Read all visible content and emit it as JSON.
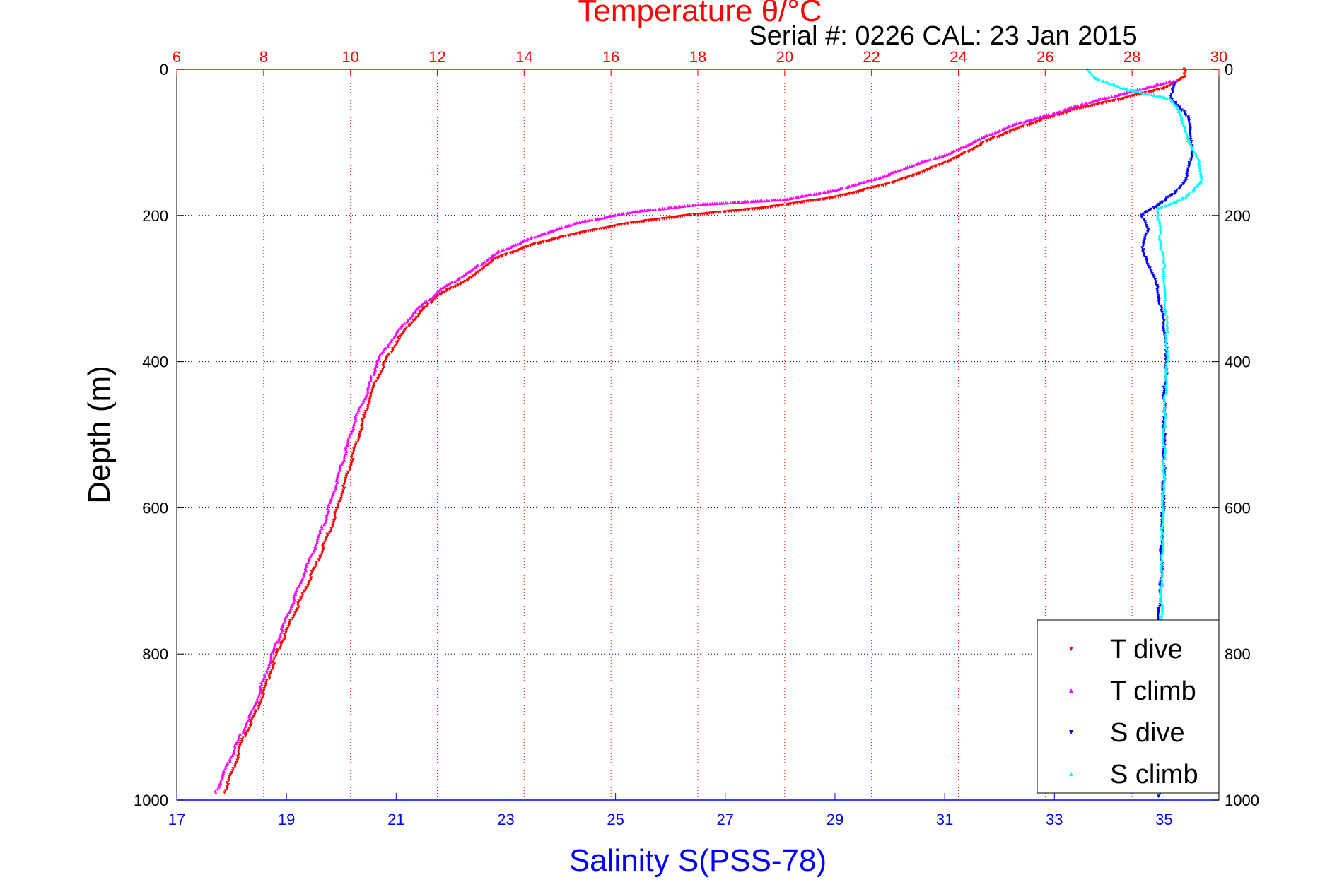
{
  "chart_data": {
    "type": "scatter",
    "title": "Temperature θ/°C",
    "subtitle": "Serial #: 0226  CAL: 23 Jan 2015",
    "ylabel": "Depth (m)",
    "xlabel_bottom": "Salinity S(PSS-78)",
    "xlabel_top": "Temperature θ/°C",
    "y_reversed": true,
    "ylim": [
      0,
      1000
    ],
    "yticks": [
      "0",
      "200",
      "400",
      "600",
      "800",
      "1000"
    ],
    "x_top_lim": [
      6,
      30
    ],
    "x_top_ticks": [
      "6",
      "8",
      "10",
      "12",
      "14",
      "16",
      "18",
      "20",
      "22",
      "24",
      "26",
      "28",
      "30"
    ],
    "x_bottom_lim": [
      17,
      36
    ],
    "x_bottom_ticks": [
      "17",
      "19",
      "21",
      "23",
      "25",
      "27",
      "29",
      "31",
      "33",
      "35"
    ],
    "grid": true,
    "legend_position": "bottom-right",
    "colors": {
      "temperature_axis": "#ff0000",
      "salinity_axis": "#0000ff",
      "t_dive": "#ff0000",
      "t_climb": "#ff00ff",
      "s_dive": "#0000ff",
      "s_climb": "#00ffff"
    },
    "series": [
      {
        "name": "T dive",
        "axis": "temperature",
        "color": "#ff0000",
        "marker": "triangle-down",
        "points": [
          [
            29.2,
            0
          ],
          [
            29.2,
            10
          ],
          [
            28.8,
            25
          ],
          [
            27.8,
            40
          ],
          [
            26.7,
            55
          ],
          [
            25.9,
            70
          ],
          [
            25.2,
            85
          ],
          [
            24.6,
            100
          ],
          [
            24.0,
            120
          ],
          [
            23.2,
            140
          ],
          [
            22.5,
            155
          ],
          [
            21.2,
            175
          ],
          [
            19.5,
            190
          ],
          [
            17.8,
            200
          ],
          [
            16.5,
            210
          ],
          [
            15.2,
            225
          ],
          [
            14.2,
            240
          ],
          [
            13.3,
            260
          ],
          [
            12.8,
            285
          ],
          [
            12.0,
            310
          ],
          [
            11.5,
            340
          ],
          [
            11.1,
            370
          ],
          [
            10.8,
            400
          ],
          [
            10.5,
            440
          ],
          [
            10.3,
            480
          ],
          [
            10.1,
            520
          ],
          [
            9.9,
            560
          ],
          [
            9.6,
            620
          ],
          [
            9.2,
            680
          ],
          [
            8.9,
            720
          ],
          [
            8.3,
            800
          ],
          [
            7.9,
            870
          ],
          [
            7.5,
            920
          ],
          [
            7.3,
            960
          ],
          [
            7.1,
            990
          ]
        ]
      },
      {
        "name": "T climb",
        "axis": "temperature",
        "color": "#ff00ff",
        "marker": "triangle-up",
        "points": [
          [
            29.0,
            15
          ],
          [
            28.0,
            30
          ],
          [
            27.0,
            45
          ],
          [
            26.2,
            60
          ],
          [
            25.3,
            75
          ],
          [
            24.5,
            95
          ],
          [
            23.8,
            115
          ],
          [
            23.0,
            130
          ],
          [
            22.2,
            148
          ],
          [
            21.2,
            165
          ],
          [
            20.0,
            178
          ],
          [
            18.0,
            185
          ],
          [
            16.5,
            195
          ],
          [
            15.2,
            210
          ],
          [
            14.2,
            230
          ],
          [
            13.4,
            250
          ],
          [
            12.8,
            275
          ],
          [
            12.1,
            300
          ],
          [
            11.5,
            330
          ],
          [
            11.0,
            365
          ],
          [
            10.6,
            400
          ],
          [
            10.4,
            440
          ],
          [
            10.1,
            480
          ],
          [
            9.9,
            520
          ],
          [
            9.7,
            560
          ],
          [
            9.4,
            620
          ],
          [
            9.0,
            680
          ],
          [
            8.6,
            740
          ],
          [
            8.2,
            800
          ],
          [
            7.8,
            870
          ],
          [
            7.4,
            920
          ],
          [
            7.1,
            960
          ],
          [
            6.9,
            990
          ]
        ]
      },
      {
        "name": "S dive",
        "axis": "salinity",
        "color": "#0000ff",
        "marker": "triangle-down",
        "points": [
          [
            35.2,
            20
          ],
          [
            35.1,
            40
          ],
          [
            35.4,
            60
          ],
          [
            35.5,
            90
          ],
          [
            35.5,
            120
          ],
          [
            35.4,
            150
          ],
          [
            35.2,
            170
          ],
          [
            34.9,
            185
          ],
          [
            34.6,
            200
          ],
          [
            34.7,
            220
          ],
          [
            34.6,
            250
          ],
          [
            34.8,
            280
          ],
          [
            34.9,
            310
          ],
          [
            35.0,
            350
          ],
          [
            35.05,
            400
          ],
          [
            35.0,
            450
          ],
          [
            35.0,
            500
          ],
          [
            35.0,
            550
          ],
          [
            34.98,
            600
          ],
          [
            34.95,
            650
          ],
          [
            34.95,
            700
          ],
          [
            34.9,
            750
          ],
          [
            34.9,
            800
          ],
          [
            34.9,
            850
          ],
          [
            34.9,
            900
          ],
          [
            34.9,
            950
          ],
          [
            34.9,
            995
          ]
        ]
      },
      {
        "name": "S climb",
        "axis": "salinity",
        "color": "#00ffff",
        "marker": "triangle-up",
        "points": [
          [
            33.6,
            0
          ],
          [
            33.7,
            10
          ],
          [
            34.2,
            25
          ],
          [
            35.1,
            40
          ],
          [
            35.3,
            60
          ],
          [
            35.4,
            90
          ],
          [
            35.6,
            120
          ],
          [
            35.7,
            150
          ],
          [
            35.4,
            175
          ],
          [
            34.9,
            190
          ],
          [
            34.9,
            210
          ],
          [
            34.95,
            240
          ],
          [
            35.0,
            270
          ],
          [
            35.0,
            300
          ],
          [
            35.05,
            350
          ],
          [
            35.05,
            400
          ],
          [
            35.02,
            450
          ],
          [
            35.0,
            500
          ],
          [
            35.0,
            550
          ],
          [
            34.98,
            600
          ],
          [
            34.97,
            650
          ],
          [
            34.95,
            700
          ],
          [
            34.95,
            750
          ],
          [
            34.93,
            800
          ],
          [
            34.92,
            850
          ],
          [
            34.9,
            900
          ],
          [
            34.9,
            950
          ],
          [
            34.9,
            990
          ]
        ]
      }
    ]
  }
}
